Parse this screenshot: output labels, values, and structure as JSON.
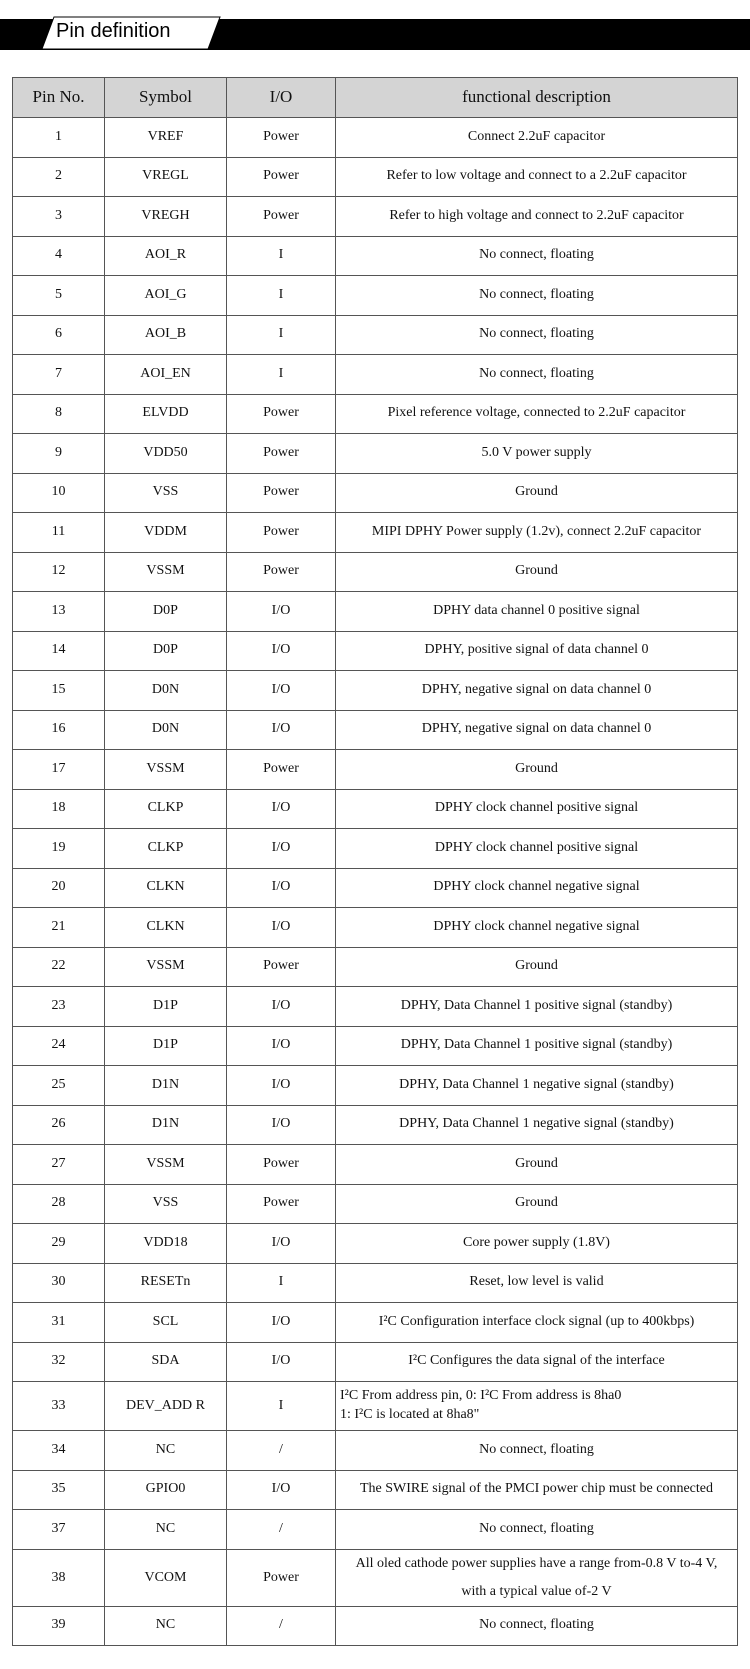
{
  "title": "Pin definition",
  "headers": [
    "Pin No.",
    "Symbol",
    "I/O",
    "functional description"
  ],
  "rows": [
    [
      "1",
      "VREF",
      "Power",
      "Connect 2.2uF capacitor"
    ],
    [
      "2",
      "VREGL",
      "Power",
      "Refer to low voltage and connect to a 2.2uF capacitor"
    ],
    [
      "3",
      "VREGH",
      "Power",
      "Refer to high voltage and connect to 2.2uF capacitor"
    ],
    [
      "4",
      "AOI_R",
      "I",
      "No connect, floating"
    ],
    [
      "5",
      "AOI_G",
      "I",
      "No connect, floating"
    ],
    [
      "6",
      "AOI_B",
      "I",
      "No connect, floating"
    ],
    [
      "7",
      "AOI_EN",
      "I",
      "No connect, floating"
    ],
    [
      "8",
      "ELVDD",
      "Power",
      "Pixel reference voltage, connected to 2.2uF capacitor"
    ],
    [
      "9",
      "VDD50",
      "Power",
      "5.0 V power supply"
    ],
    [
      "10",
      "VSS",
      "Power",
      "Ground"
    ],
    [
      "11",
      "VDDM",
      "Power",
      "MIPI DPHY Power supply (1.2v), connect 2.2uF capacitor"
    ],
    [
      "12",
      "VSSM",
      "Power",
      "Ground"
    ],
    [
      "13",
      "D0P",
      "I/O",
      "DPHY data channel 0 positive signal"
    ],
    [
      "14",
      "D0P",
      "I/O",
      "DPHY, positive signal of data channel 0"
    ],
    [
      "15",
      "D0N",
      "I/O",
      "DPHY, negative signal on data channel 0"
    ],
    [
      "16",
      "D0N",
      "I/O",
      "DPHY, negative signal on data channel 0"
    ],
    [
      "17",
      "VSSM",
      "Power",
      "Ground"
    ],
    [
      "18",
      "CLKP",
      "I/O",
      "DPHY clock channel positive signal"
    ],
    [
      "19",
      "CLKP",
      "I/O",
      "DPHY clock channel positive signal"
    ],
    [
      "20",
      "CLKN",
      "I/O",
      "DPHY clock channel negative signal"
    ],
    [
      "21",
      "CLKN",
      "I/O",
      "DPHY clock channel negative signal"
    ],
    [
      "22",
      "VSSM",
      "Power",
      "Ground"
    ],
    [
      "23",
      "D1P",
      "I/O",
      "DPHY, Data Channel 1 positive signal (standby)"
    ],
    [
      "24",
      "D1P",
      "I/O",
      "DPHY, Data Channel 1 positive signal (standby)"
    ],
    [
      "25",
      "D1N",
      "I/O",
      "DPHY, Data Channel 1 negative signal (standby)"
    ],
    [
      "26",
      "D1N",
      "I/O",
      "DPHY, Data Channel 1 negative signal (standby)"
    ],
    [
      "27",
      "VSSM",
      "Power",
      "Ground"
    ],
    [
      "28",
      "VSS",
      "Power",
      "Ground"
    ],
    [
      "29",
      "VDD18",
      "I/O",
      "Core power supply (1.8V)"
    ],
    [
      "30",
      "RESETn",
      "I",
      "Reset, low level is valid"
    ],
    [
      "31",
      "SCL",
      "I/O",
      "I²C Configuration interface clock signal (up to 400kbps)"
    ],
    [
      "32",
      "SDA",
      "I/O",
      "I²C Configures the data signal of the interface"
    ],
    [
      "33",
      "DEV_ADD R",
      "I",
      "I²C From address pin, 0: I²C From address is 8ha0\n1: I²C is located at 8ha8\""
    ],
    [
      "34",
      "NC",
      "/",
      "No connect, floating"
    ],
    [
      "35",
      "GPIO0",
      "I/O",
      "The SWIRE signal of the PMCI power chip must be connected"
    ],
    [
      "37",
      "NC",
      "/",
      "No connect, floating"
    ],
    [
      "38",
      "VCOM",
      "Power",
      "All oled cathode power supplies have a range from-0.8 V to-4 V,\nwith a typical value of-2 V"
    ],
    [
      "39",
      "NC",
      "/",
      "No connect, floating"
    ]
  ]
}
